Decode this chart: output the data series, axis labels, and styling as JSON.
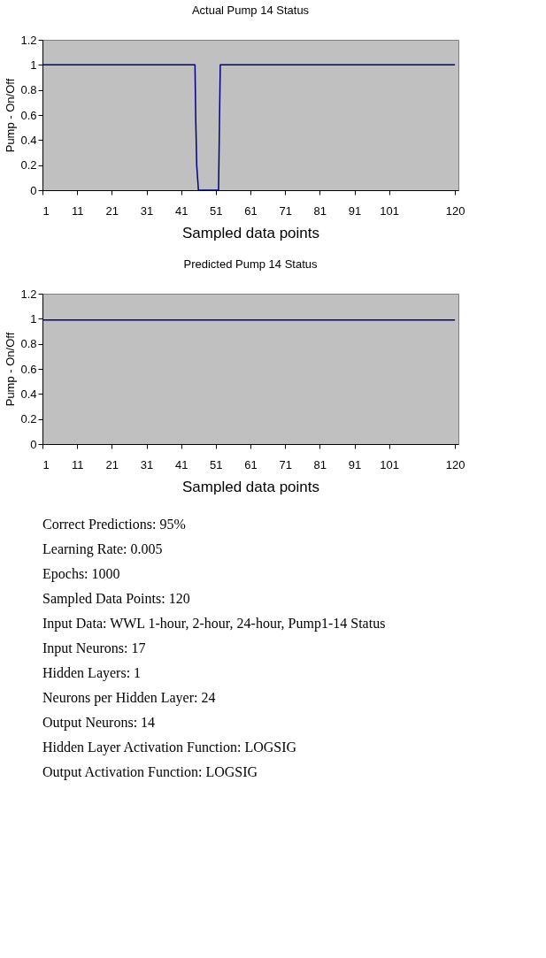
{
  "chart_data": [
    {
      "type": "line",
      "title": "Actual Pump 14 Status",
      "xlabel": "Sampled data points",
      "ylabel": "Pump - On/Off",
      "x": [
        1,
        45,
        45.2,
        45.5,
        46,
        51.8,
        52,
        52.3,
        120
      ],
      "series": [
        {
          "color": "#000080",
          "values": [
            1,
            1,
            0.6,
            0.2,
            0,
            0,
            0.4,
            1,
            1
          ]
        }
      ],
      "xlim": [
        1,
        121
      ],
      "xticks": [
        1,
        11,
        21,
        31,
        41,
        51,
        61,
        71,
        81,
        91,
        101,
        120
      ],
      "ylim": [
        0,
        1.2
      ],
      "yticks": [
        0,
        0.2,
        0.4,
        0.6,
        0.8,
        1,
        1.2
      ],
      "grid": false,
      "legend": false,
      "marker": "none",
      "line_style": "solid"
    },
    {
      "type": "line",
      "title": "Predicted Pump 14 Status",
      "xlabel": "Sampled data points",
      "ylabel": "Pump - On/Off",
      "x": [
        1,
        120
      ],
      "series": [
        {
          "color": "#000080",
          "values": [
            0.99,
            0.99
          ]
        }
      ],
      "xlim": [
        1,
        121
      ],
      "xticks": [
        1,
        11,
        21,
        31,
        41,
        51,
        61,
        71,
        81,
        91,
        101,
        120
      ],
      "ylim": [
        0,
        1.2
      ],
      "yticks": [
        0,
        0.2,
        0.4,
        0.6,
        0.8,
        1,
        1.2
      ],
      "grid": false,
      "legend": false,
      "marker": "none",
      "line_style": "solid"
    },
    {
      "type": "other",
      "annotations": [
        "Correct Predictions: 95%",
        "Learning Rate: 0.005",
        "Epochs: 1000",
        "Sampled Data Points: 120",
        "Input Data: WWL 1-hour, 2-hour, 24-hour, Pump1-14 Status",
        "Input Neurons: 17",
        "Hidden Layers: 1",
        "Neurons per Hidden Layer: 24",
        "Output Neurons: 14",
        "Hidden Layer Activation Function: LOGSIG",
        "Output Activation Function: LOGSIG"
      ]
    }
  ]
}
